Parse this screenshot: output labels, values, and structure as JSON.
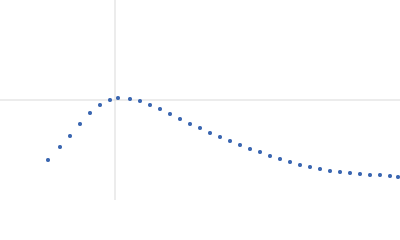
{
  "chart_data": {
    "type": "scatter",
    "x": [
      48,
      60,
      70,
      80,
      90,
      100,
      110,
      118,
      130,
      140,
      150,
      160,
      170,
      180,
      190,
      200,
      210,
      220,
      230,
      240,
      250,
      260,
      270,
      280,
      290,
      300,
      310,
      320,
      330,
      340,
      350,
      360,
      370,
      380,
      390,
      398
    ],
    "values": [
      40,
      53,
      64,
      76,
      87,
      95,
      100,
      102,
      101,
      99,
      95,
      91,
      86,
      81,
      76,
      72,
      67,
      63,
      59,
      55,
      51,
      48,
      44,
      41,
      38,
      35,
      33,
      31,
      29,
      28,
      27,
      26,
      25,
      25,
      24,
      23
    ],
    "color": "#3a66b0",
    "xlim": [
      0,
      400
    ],
    "ylim": [
      0,
      200
    ],
    "xticks": [
      115
    ],
    "yticks": [
      100
    ],
    "grid": true
  }
}
